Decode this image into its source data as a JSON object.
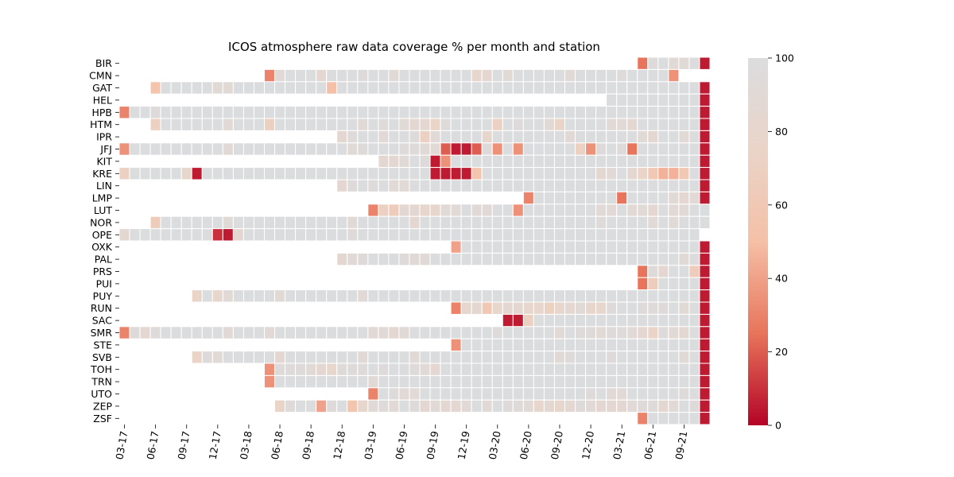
{
  "chart_data": {
    "type": "heatmap",
    "title": "ICOS atmosphere raw data coverage % per month and station",
    "stations": [
      "BIR",
      "CMN",
      "GAT",
      "HEL",
      "HPB",
      "HTM",
      "IPR",
      "JFJ",
      "KIT",
      "KRE",
      "LIN",
      "LMP",
      "LUT",
      "NOR",
      "OPE",
      "OXK",
      "PAL",
      "PRS",
      "PUI",
      "PUY",
      "RUN",
      "SAC",
      "SMR",
      "STE",
      "SVB",
      "TOH",
      "TRN",
      "UTO",
      "ZEP",
      "ZSF"
    ],
    "x_tick_labels": [
      "03-17",
      "06-17",
      "09-17",
      "12-17",
      "03-18",
      "06-18",
      "09-18",
      "12-18",
      "03-19",
      "06-19",
      "09-19",
      "12-19",
      "03-20",
      "06-20",
      "09-20",
      "12-20",
      "03-21",
      "06-21",
      "09-21"
    ],
    "months": [
      "03-17",
      "04-17",
      "05-17",
      "06-17",
      "07-17",
      "08-17",
      "09-17",
      "10-17",
      "11-17",
      "12-17",
      "01-18",
      "02-18",
      "03-18",
      "04-18",
      "05-18",
      "06-18",
      "07-18",
      "08-18",
      "09-18",
      "10-18",
      "11-18",
      "12-18",
      "01-19",
      "02-19",
      "03-19",
      "04-19",
      "05-19",
      "06-19",
      "07-19",
      "08-19",
      "09-19",
      "10-19",
      "11-19",
      "12-19",
      "01-20",
      "02-20",
      "03-20",
      "04-20",
      "05-20",
      "06-20",
      "07-20",
      "08-20",
      "09-20",
      "10-20",
      "11-20",
      "12-20",
      "01-21",
      "02-21",
      "03-21",
      "04-21",
      "05-21",
      "06-21",
      "07-21",
      "08-21",
      "09-21",
      "10-21",
      "11-21"
    ],
    "colorbar": {
      "min": 0,
      "max": 100,
      "ticks": [
        0,
        20,
        40,
        60,
        80,
        100
      ],
      "colormap": "coolwarm_r"
    },
    "colors": {
      "low": "#b40426",
      "mid": "#f2cbb7",
      "high": "#dddcdc"
    },
    "values": {
      "BIR": [
        [
          50,
          25
        ],
        [
          51,
          95
        ],
        [
          52,
          100
        ],
        [
          53,
          90
        ],
        [
          54,
          90
        ],
        [
          55,
          100
        ],
        [
          56,
          5
        ]
      ],
      "CMN": [
        [
          14,
          30
        ],
        [
          15,
          90
        ],
        [
          16,
          100
        ],
        [
          17,
          100
        ],
        [
          18,
          100
        ],
        [
          19,
          85
        ],
        [
          20,
          100
        ],
        [
          21,
          100
        ],
        [
          22,
          100
        ],
        [
          23,
          95
        ],
        [
          24,
          100
        ],
        [
          25,
          100
        ],
        [
          26,
          90
        ],
        [
          27,
          100
        ],
        [
          28,
          100
        ],
        [
          29,
          100
        ],
        [
          30,
          100
        ],
        [
          31,
          100
        ],
        [
          32,
          100
        ],
        [
          33,
          100
        ],
        [
          34,
          80
        ],
        [
          35,
          85
        ],
        [
          36,
          100
        ],
        [
          37,
          90
        ],
        [
          38,
          100
        ],
        [
          39,
          100
        ],
        [
          40,
          100
        ],
        [
          41,
          100
        ],
        [
          42,
          100
        ],
        [
          43,
          90
        ],
        [
          44,
          100
        ],
        [
          45,
          100
        ],
        [
          46,
          100
        ],
        [
          47,
          100
        ],
        [
          48,
          95
        ],
        [
          49,
          100
        ],
        [
          50,
          100
        ],
        [
          51,
          100
        ],
        [
          52,
          100
        ],
        [
          53,
          35
        ]
      ],
      "GAT": "3:55,4-9:100,10:90,11-13:100,14:100,15:100,16-19:100,20:50,21-55:100,56:5",
      "HEL": "47-55:100,56:5",
      "HPB": "0:30,1-56:100",
      "HTM": "3:70,4-9:100,10:90,11-13:100,14:70,15-56:100",
      "IPR": "21:85,22-56:100",
      "JFJ": "0:35,1-56:100",
      "KIT": "25:85,26-56:100",
      "KRE": "0:70,1-56:100",
      "LIN": "21:85,22-56:100",
      "LMP": "39:30,40-56:100",
      "LUT": "24:30,25-56:100",
      "NOR": "3:60,4-56:100",
      "OPE": "0:85,1-55:100",
      "OXK": "32:40,33-56:100",
      "PAL": "21:85,22-56:100",
      "PRS": "50:25,51-56:100",
      "PUI": "50:25,51-56:100",
      "PUY": "7:75,8-56:100",
      "RUN": "32:30,33-56:100",
      "SAC": "37:5,38:5,39:70,40-56:100",
      "SMR": "0:30,1-56:100",
      "STE": "32:35,33-56:100",
      "SVB": "7:75,8-56:100",
      "TOH": "14:35,15-56:100",
      "TRN": "14:35,15-56:100",
      "UTO": "24:30,25-56:100",
      "ZEP": "15:75,16-56:100",
      "ZSF": "50:30,51-56:100"
    },
    "overrides": {
      "GAT": [
        [
          0,
          null
        ],
        [
          1,
          null
        ],
        [
          2,
          null
        ],
        [
          9,
          90
        ],
        [
          14,
          100
        ],
        [
          15,
          100
        ],
        [
          16,
          100
        ],
        [
          20,
          50
        ],
        [
          56,
          5
        ]
      ],
      "HEL": [
        [
          56,
          5
        ]
      ],
      "HPB": [
        [
          3,
          95
        ],
        [
          56,
          5
        ]
      ],
      "HTM": [
        [
          10,
          90
        ],
        [
          14,
          70
        ],
        [
          20,
          100
        ],
        [
          23,
          90
        ],
        [
          25,
          95
        ],
        [
          27,
          90
        ],
        [
          28,
          85
        ],
        [
          29,
          85
        ],
        [
          30,
          75
        ],
        [
          31,
          95
        ],
        [
          36,
          70
        ],
        [
          38,
          95
        ],
        [
          41,
          90
        ],
        [
          42,
          75
        ],
        [
          47,
          90
        ],
        [
          48,
          90
        ],
        [
          49,
          85
        ],
        [
          56,
          5
        ]
      ],
      "IPR": [
        [
          22,
          95
        ],
        [
          23,
          100
        ],
        [
          25,
          90
        ],
        [
          28,
          95
        ],
        [
          29,
          70
        ],
        [
          30,
          90
        ],
        [
          35,
          80
        ],
        [
          43,
          90
        ],
        [
          50,
          90
        ],
        [
          51,
          85
        ],
        [
          54,
          90
        ],
        [
          56,
          5
        ]
      ],
      "JFJ": [
        [
          10,
          90
        ],
        [
          22,
          90
        ],
        [
          23,
          95
        ],
        [
          27,
          95
        ],
        [
          28,
          95
        ],
        [
          29,
          90
        ],
        [
          30,
          90
        ],
        [
          31,
          20
        ],
        [
          32,
          5
        ],
        [
          33,
          5
        ],
        [
          34,
          20
        ],
        [
          35,
          95
        ],
        [
          36,
          35
        ],
        [
          37,
          100
        ],
        [
          38,
          35
        ],
        [
          44,
          70
        ],
        [
          45,
          35
        ],
        [
          46,
          95
        ],
        [
          48,
          95
        ],
        [
          49,
          25
        ],
        [
          56,
          5
        ]
      ],
      "KIT": [
        [
          26,
          85
        ],
        [
          27,
          90
        ],
        [
          28,
          100
        ],
        [
          29,
          95
        ],
        [
          30,
          5
        ],
        [
          31,
          35
        ],
        [
          56,
          5
        ]
      ],
      "KRE": [
        [
          0,
          70
        ],
        [
          6,
          80
        ],
        [
          7,
          5
        ],
        [
          30,
          5
        ],
        [
          31,
          5
        ],
        [
          32,
          5
        ],
        [
          33,
          5
        ],
        [
          34,
          55
        ],
        [
          46,
          85
        ],
        [
          47,
          90
        ],
        [
          49,
          85
        ],
        [
          50,
          75
        ],
        [
          51,
          60
        ],
        [
          52,
          45
        ],
        [
          53,
          45
        ],
        [
          54,
          60
        ],
        [
          56,
          5
        ]
      ],
      "LIN": [
        [
          22,
          95
        ],
        [
          23,
          100
        ],
        [
          24,
          95
        ],
        [
          26,
          90
        ],
        [
          27,
          90
        ],
        [
          28,
          100
        ],
        [
          56,
          5
        ]
      ],
      "LMP": [
        [
          48,
          25
        ],
        [
          53,
          90
        ],
        [
          54,
          85
        ],
        [
          55,
          90
        ],
        [
          56,
          5
        ]
      ],
      "LUT": [
        [
          25,
          70
        ],
        [
          26,
          65
        ],
        [
          27,
          85
        ],
        [
          28,
          85
        ],
        [
          29,
          80
        ],
        [
          30,
          80
        ],
        [
          31,
          90
        ],
        [
          32,
          90
        ],
        [
          33,
          100
        ],
        [
          34,
          90
        ],
        [
          35,
          90
        ],
        [
          36,
          100
        ],
        [
          37,
          100
        ],
        [
          38,
          35
        ],
        [
          46,
          90
        ],
        [
          47,
          90
        ],
        [
          48,
          100
        ],
        [
          49,
          90
        ],
        [
          50,
          90
        ],
        [
          51,
          85
        ],
        [
          53,
          90
        ],
        [
          54,
          90
        ],
        [
          55,
          100
        ]
      ],
      "NOR": [
        [
          3,
          65
        ],
        [
          10,
          90
        ],
        [
          22,
          90
        ],
        [
          28,
          85
        ],
        [
          46,
          95
        ],
        [
          51,
          90
        ],
        [
          53,
          90
        ],
        [
          55,
          100
        ]
      ],
      "OPE": [
        [
          9,
          10
        ],
        [
          10,
          5
        ],
        [
          11,
          85
        ],
        [
          22,
          95
        ],
        [
          56,
          null
        ]
      ],
      "OXK": [
        [
          56,
          5
        ]
      ],
      "PAL": [
        [
          22,
          90
        ],
        [
          23,
          95
        ],
        [
          27,
          95
        ],
        [
          28,
          90
        ],
        [
          29,
          90
        ],
        [
          54,
          90
        ],
        [
          56,
          5
        ]
      ],
      "PRS": [
        [
          51,
          95
        ],
        [
          52,
          85
        ],
        [
          53,
          100
        ],
        [
          54,
          100
        ],
        [
          55,
          65
        ],
        [
          56,
          5
        ]
      ],
      "PUI": [
        [
          51,
          65
        ],
        [
          52,
          100
        ],
        [
          53,
          100
        ],
        [
          56,
          5
        ]
      ],
      "PUY": [
        [
          8,
          100
        ],
        [
          9,
          80
        ],
        [
          10,
          90
        ],
        [
          15,
          90
        ],
        [
          23,
          90
        ],
        [
          56,
          5
        ]
      ],
      "RUN": [
        [
          33,
          80
        ],
        [
          34,
          85
        ],
        [
          35,
          60
        ],
        [
          36,
          80
        ],
        [
          37,
          85
        ],
        [
          38,
          85
        ],
        [
          39,
          80
        ],
        [
          40,
          80
        ],
        [
          41,
          70
        ],
        [
          42,
          80
        ],
        [
          43,
          85
        ],
        [
          44,
          90
        ],
        [
          45,
          80
        ],
        [
          46,
          80
        ],
        [
          47,
          95
        ],
        [
          50,
          95
        ],
        [
          51,
          95
        ],
        [
          52,
          95
        ],
        [
          54,
          90
        ],
        [
          56,
          5
        ]
      ],
      "SAC": [
        [
          56,
          5
        ]
      ],
      "SMR": [
        [
          1,
          95
        ],
        [
          2,
          85
        ],
        [
          3,
          95
        ],
        [
          4,
          100
        ],
        [
          10,
          90
        ],
        [
          14,
          90
        ],
        [
          24,
          90
        ],
        [
          25,
          90
        ],
        [
          26,
          85
        ],
        [
          27,
          90
        ],
        [
          36,
          95
        ],
        [
          42,
          90
        ],
        [
          44,
          95
        ],
        [
          45,
          95
        ],
        [
          46,
          90
        ],
        [
          47,
          95
        ],
        [
          48,
          95
        ],
        [
          49,
          90
        ],
        [
          50,
          85
        ],
        [
          51,
          75
        ],
        [
          52,
          95
        ],
        [
          53,
          90
        ],
        [
          54,
          85
        ],
        [
          56,
          5
        ]
      ],
      "STE": [
        [
          56,
          5
        ]
      ],
      "SVB": [
        [
          8,
          95
        ],
        [
          9,
          90
        ],
        [
          10,
          100
        ],
        [
          15,
          85
        ],
        [
          23,
          90
        ],
        [
          28,
          90
        ],
        [
          42,
          90
        ],
        [
          43,
          95
        ],
        [
          47,
          95
        ],
        [
          54,
          90
        ],
        [
          56,
          5
        ]
      ],
      "TOH": [
        [
          15,
          95
        ],
        [
          16,
          95
        ],
        [
          17,
          95
        ],
        [
          18,
          90
        ],
        [
          19,
          85
        ],
        [
          20,
          80
        ],
        [
          21,
          95
        ],
        [
          22,
          95
        ],
        [
          23,
          95
        ],
        [
          25,
          95
        ],
        [
          28,
          95
        ],
        [
          29,
          90
        ],
        [
          30,
          85
        ],
        [
          56,
          5
        ]
      ],
      "TRN": [
        [
          24,
          90
        ],
        [
          56,
          5
        ]
      ],
      "UTO": [
        [
          26,
          95
        ],
        [
          27,
          90
        ],
        [
          28,
          90
        ],
        [
          45,
          95
        ],
        [
          47,
          90
        ],
        [
          48,
          90
        ],
        [
          54,
          95
        ],
        [
          56,
          5
        ]
      ],
      "ZEP": [
        [
          16,
          95
        ],
        [
          17,
          100
        ],
        [
          18,
          100
        ],
        [
          19,
          40
        ],
        [
          20,
          95
        ],
        [
          21,
          100
        ],
        [
          22,
          55
        ],
        [
          23,
          80
        ],
        [
          24,
          90
        ],
        [
          25,
          95
        ],
        [
          26,
          90
        ],
        [
          27,
          100
        ],
        [
          28,
          95
        ],
        [
          29,
          85
        ],
        [
          30,
          90
        ],
        [
          31,
          85
        ],
        [
          32,
          85
        ],
        [
          33,
          90
        ],
        [
          35,
          90
        ],
        [
          37,
          95
        ],
        [
          38,
          95
        ],
        [
          39,
          90
        ],
        [
          40,
          80
        ],
        [
          41,
          85
        ],
        [
          42,
          80
        ],
        [
          43,
          85
        ],
        [
          44,
          95
        ],
        [
          45,
          90
        ],
        [
          46,
          85
        ],
        [
          47,
          85
        ],
        [
          48,
          85
        ],
        [
          49,
          90
        ],
        [
          50,
          95
        ],
        [
          51,
          95
        ],
        [
          52,
          85
        ],
        [
          53,
          90
        ],
        [
          55,
          95
        ],
        [
          56,
          5
        ]
      ],
      "ZSF": [
        [
          56,
          5
        ]
      ]
    }
  }
}
